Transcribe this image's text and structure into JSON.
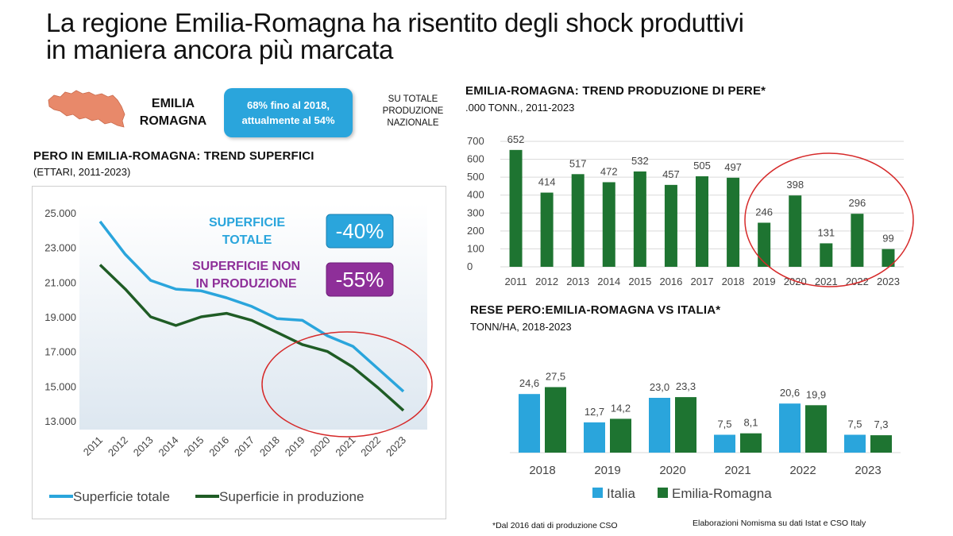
{
  "title": {
    "line1": "La regione Emilia-Romagna ha risentito degli shock produttivi",
    "line2": "in maniera ancora più marcata"
  },
  "region": {
    "label_line1": "EMILIA",
    "label_line2": "ROMAGNA",
    "share_line1": "68% fino al 2018,",
    "share_line2": "attualmente al 54%",
    "note_line1": "SU TOTALE",
    "note_line2": "PRODUZIONE",
    "note_line3": "NAZIONALE",
    "map_color": "#e8896a"
  },
  "superfici": {
    "title": "PERO IN EMILIA-ROMAGNA:  TREND SUPERFICI",
    "subtitle": "(ETTARI, 2011-2023)",
    "callout_total_line1": "SUPERFICIE",
    "callout_total_line2": "TOTALE",
    "callout_total_value": "-40%",
    "callout_nonprod_line1": "SUPERFICIE NON",
    "callout_nonprod_line2": "IN PRODUZIONE",
    "callout_nonprod_value": "-55%"
  },
  "produzione": {
    "title": "EMILIA-ROMAGNA:  TREND PRODUZIONE  DI PERE*",
    "subtitle": ".000 TONN., 2011-2023"
  },
  "rese": {
    "title": "RESE PERO:EMILIA-ROMAGNA  VS ITALIA*",
    "subtitle": "TONN/HA, 2018-2023"
  },
  "footer": {
    "note": "*Dal 2016 dati di produzione  CSO",
    "source": "Elaborazioni  Nomisma  su dati Istat  e CSO  Italy"
  },
  "colors": {
    "blue": "#2aa5dc",
    "green": "#1e7431",
    "dark_green": "#1f5c25",
    "purple": "#8e2f99",
    "red_circle": "#d62a2a"
  },
  "chart_data": [
    {
      "type": "line",
      "x": [
        "2011",
        "2012",
        "2013",
        "2014",
        "2015",
        "2016",
        "2017",
        "2018",
        "2019",
        "2020",
        "2021",
        "2022",
        "2023"
      ],
      "yticks": [
        "13.000",
        "15.000",
        "17.000",
        "19.000",
        "21.000",
        "23.000",
        "25.000"
      ],
      "ylim": [
        13000,
        25000
      ],
      "grid": false,
      "legend": "bottom",
      "series": [
        {
          "name": "Superficie totale",
          "values": [
            24500,
            22600,
            21100,
            20600,
            20500,
            20100,
            19600,
            18900,
            18800,
            17900,
            17300,
            16000,
            14700
          ]
        },
        {
          "name": "Superficie in produzione",
          "values": [
            22000,
            20600,
            19000,
            18500,
            19000,
            19200,
            18800,
            18100,
            17400,
            17000,
            16100,
            14900,
            13600
          ]
        }
      ]
    },
    {
      "type": "bar",
      "categories": [
        "2011",
        "2012",
        "2013",
        "2014",
        "2015",
        "2016",
        "2017",
        "2018",
        "2019",
        "2020",
        "2021",
        "2022",
        "2023"
      ],
      "values": [
        652,
        414,
        517,
        472,
        532,
        457,
        505,
        497,
        246,
        398,
        131,
        296,
        99
      ],
      "yticks": [
        "0",
        "100",
        "200",
        "300",
        "400",
        "500",
        "600",
        "700"
      ],
      "ylim": [
        0,
        700
      ],
      "grid": true
    },
    {
      "type": "bar",
      "categories": [
        "2018",
        "2019",
        "2020",
        "2021",
        "2022",
        "2023"
      ],
      "legend": "bottom",
      "series": [
        {
          "name": "Italia",
          "values": [
            24.6,
            12.7,
            23.0,
            7.5,
            20.6,
            7.5
          ],
          "labels": [
            "24,6",
            "12,7",
            "23,0",
            "7,5",
            "20,6",
            "7,5"
          ]
        },
        {
          "name": "Emilia-Romagna",
          "values": [
            27.5,
            14.2,
            23.3,
            8.1,
            19.9,
            7.3
          ],
          "labels": [
            "27,5",
            "14,2",
            "23,3",
            "8,1",
            "19,9",
            "7,3"
          ]
        }
      ],
      "ylim": [
        0,
        30
      ]
    }
  ]
}
